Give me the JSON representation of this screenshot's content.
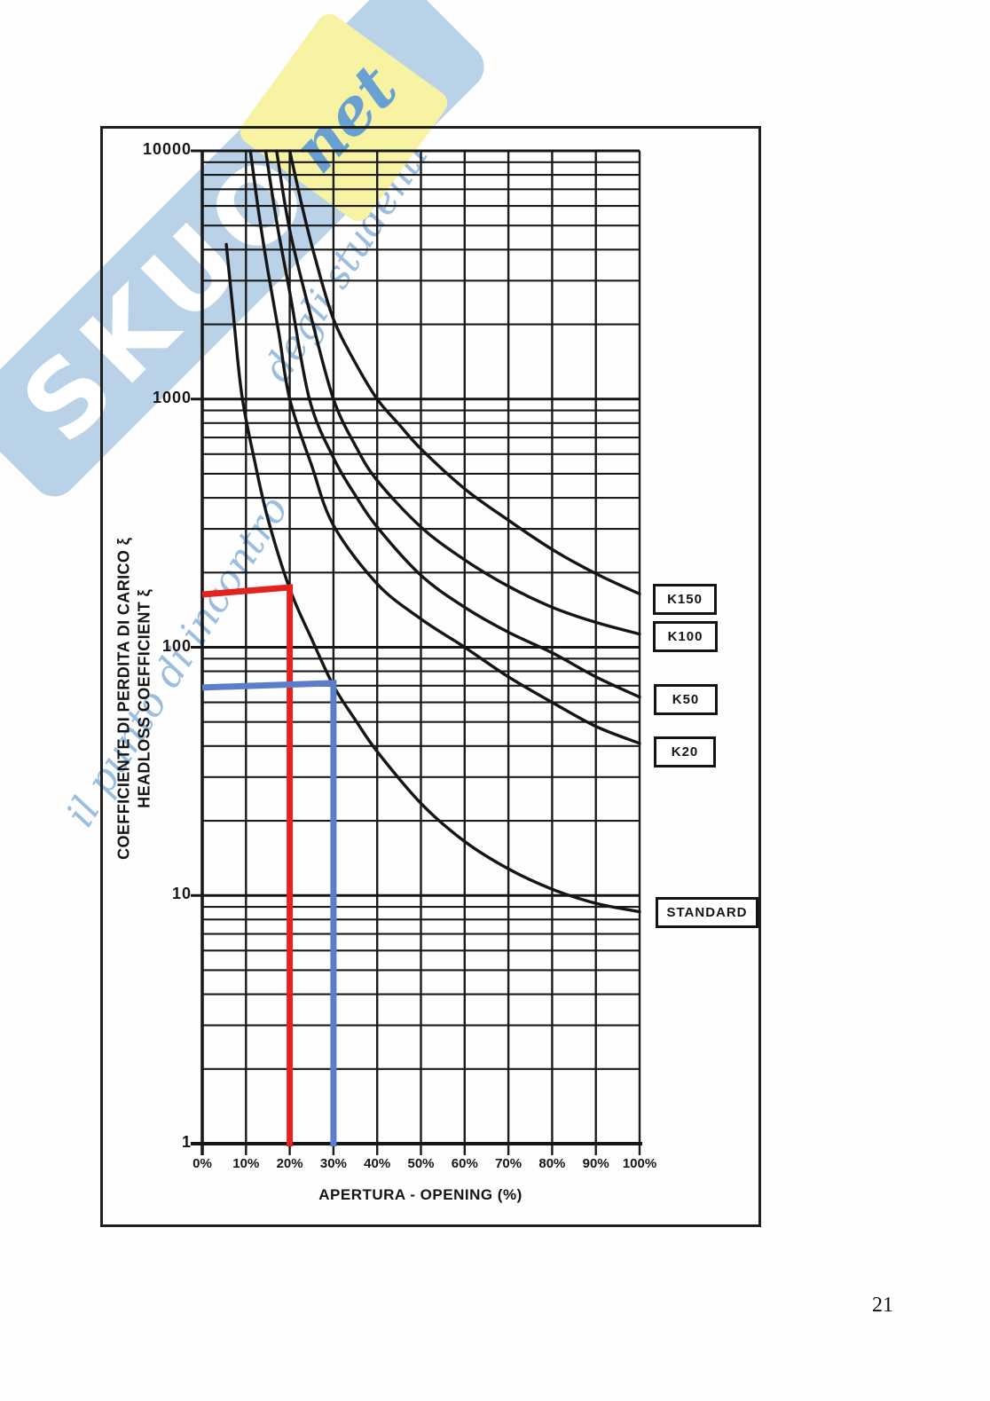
{
  "page": {
    "number": "21"
  },
  "watermark": {
    "brand": "SKUOLA",
    "brand_suffix": "net",
    "tagline_line1": "il punto di incontro",
    "tagline_line2": "degli studenti",
    "band_color": "#b9d2e8",
    "note_color": "#f8f2a3",
    "script_color": "#9bbede"
  },
  "chart_data": {
    "type": "line",
    "title": "",
    "y_scale": "log",
    "grid": true,
    "x_axis": {
      "title": "APERTURA - OPENING (%)",
      "min": 0,
      "max": 100,
      "tick_step": 10,
      "tick_labels": [
        "0%",
        "10%",
        "20%",
        "30%",
        "40%",
        "50%",
        "60%",
        "70%",
        "80%",
        "90%",
        "100%"
      ]
    },
    "y_axis": {
      "title_line1": "COEFFICIENTE DI PERDITA DI CARICO ξ",
      "title_line2": "HEADLOSS COEFFICIENT ξ",
      "min": 1,
      "max": 10000,
      "tick_labels": [
        "10000",
        "1000",
        "100",
        "10",
        "1"
      ],
      "tick_values": [
        10000,
        1000,
        100,
        10,
        1
      ]
    },
    "series": [
      {
        "name": "STANDARD",
        "points": [
          [
            5.5,
            4200
          ],
          [
            7,
            2300
          ],
          [
            9,
            1050
          ],
          [
            12,
            560
          ],
          [
            15,
            330
          ],
          [
            20,
            172
          ],
          [
            25,
            108
          ],
          [
            30,
            70
          ],
          [
            35,
            51
          ],
          [
            40,
            38
          ],
          [
            50,
            23.5
          ],
          [
            60,
            16.5
          ],
          [
            70,
            12.8
          ],
          [
            80,
            10.6
          ],
          [
            90,
            9.3
          ],
          [
            100,
            8.6
          ]
        ]
      },
      {
        "name": "K20",
        "points": [
          [
            11,
            10000
          ],
          [
            13,
            5500
          ],
          [
            15,
            3300
          ],
          [
            17.5,
            1850
          ],
          [
            20,
            1000
          ],
          [
            25,
            540
          ],
          [
            30,
            310
          ],
          [
            40,
            180
          ],
          [
            50,
            130
          ],
          [
            60,
            100
          ],
          [
            70,
            76
          ],
          [
            80,
            60
          ],
          [
            90,
            48
          ],
          [
            100,
            41
          ]
        ]
      },
      {
        "name": "K50",
        "points": [
          [
            14.5,
            10000
          ],
          [
            17,
            5200
          ],
          [
            20,
            2700
          ],
          [
            24.5,
            1000
          ],
          [
            30,
            580
          ],
          [
            35,
            410
          ],
          [
            40,
            305
          ],
          [
            50,
            195
          ],
          [
            60,
            145
          ],
          [
            70,
            115
          ],
          [
            80,
            95
          ],
          [
            90,
            76
          ],
          [
            100,
            63
          ]
        ]
      },
      {
        "name": "K100",
        "points": [
          [
            17,
            10000
          ],
          [
            20,
            4800
          ],
          [
            25,
            2100
          ],
          [
            30,
            1000
          ],
          [
            35,
            650
          ],
          [
            40,
            470
          ],
          [
            50,
            305
          ],
          [
            60,
            225
          ],
          [
            70,
            176
          ],
          [
            80,
            145
          ],
          [
            90,
            126
          ],
          [
            100,
            113
          ]
        ]
      },
      {
        "name": "K150",
        "points": [
          [
            20,
            10000
          ],
          [
            23,
            5800
          ],
          [
            26,
            3600
          ],
          [
            30,
            2100
          ],
          [
            35,
            1400
          ],
          [
            40,
            1000
          ],
          [
            45,
            790
          ],
          [
            50,
            630
          ],
          [
            60,
            435
          ],
          [
            70,
            325
          ],
          [
            80,
            248
          ],
          [
            90,
            198
          ],
          [
            100,
            164
          ]
        ]
      }
    ],
    "curve_labels": [
      {
        "text": "K150"
      },
      {
        "text": "K100"
      },
      {
        "text": "K50"
      },
      {
        "text": "K20"
      },
      {
        "text": "STANDARD"
      }
    ],
    "annotations": [
      {
        "name": "red-reading",
        "color": "#e3231d",
        "opening_pct": 20,
        "k_value": 170
      },
      {
        "name": "blue-reading",
        "color": "#5b7dcb",
        "opening_pct": 30,
        "k_value": 70
      }
    ]
  }
}
